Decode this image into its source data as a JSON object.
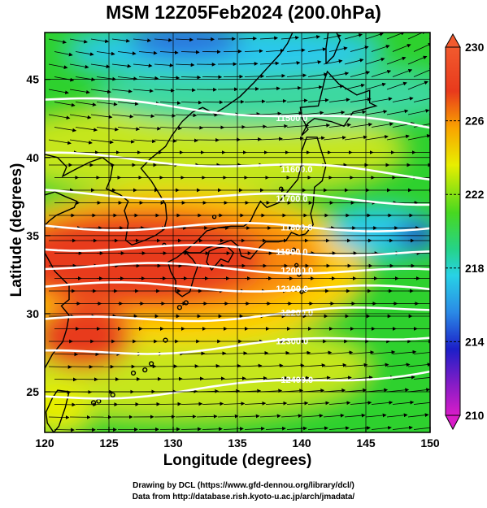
{
  "title": "MSM 12Z05Feb2024 (200.0hPa)",
  "x_axis": {
    "label": "Longitude (degrees)",
    "range": [
      120,
      150
    ],
    "ticks": [
      "120",
      "125",
      "130",
      "135",
      "140",
      "145",
      "150"
    ]
  },
  "y_axis": {
    "label": "Latitude  (degrees)",
    "range": [
      22.4,
      48
    ],
    "ticks": [
      "25",
      "30",
      "35",
      "40",
      "45"
    ]
  },
  "colorbar": {
    "ticks": [
      "230",
      "226",
      "222",
      "218",
      "214",
      "210"
    ],
    "range": [
      210,
      230
    ]
  },
  "contours": [
    {
      "label": "11500.0",
      "lat_west": 43.7,
      "lat_east": 41.9
    },
    {
      "label": "11600.0",
      "lat_west": 40.1,
      "lat_east": 38.8
    },
    {
      "label": "11700.0",
      "lat_west": 37.7,
      "lat_east": 37.2
    },
    {
      "label": "11800.0",
      "lat_west": 35.6,
      "lat_east": 35.5
    },
    {
      "label": "11900.0",
      "lat_west": 34.3,
      "lat_east": 33.8
    },
    {
      "label": "12000.0",
      "lat_west": 33.1,
      "lat_east": 32.6
    },
    {
      "label": "12100.0",
      "lat_west": 31.8,
      "lat_east": 31.5
    },
    {
      "label": "12200.0",
      "lat_west": 29.5,
      "lat_east": 30.4
    },
    {
      "label": "12300.0",
      "lat_west": 27.4,
      "lat_east": 28.7
    },
    {
      "label": "12400.0",
      "lat_west": 24.6,
      "lat_east": 26.4
    }
  ],
  "credits": {
    "line1": "Drawing by DCL (https://www.gfd-dennou.org/library/dcl/)",
    "line2": "Data from http://database.rish.kyoto-u.ac.jp/arch/jmadata/"
  },
  "colors": {
    "hot": "#e83a1c",
    "warm": "#ffd000",
    "mid": "#2ed12e",
    "cool": "#29c8ee",
    "cold": "#1a1fd0"
  }
}
